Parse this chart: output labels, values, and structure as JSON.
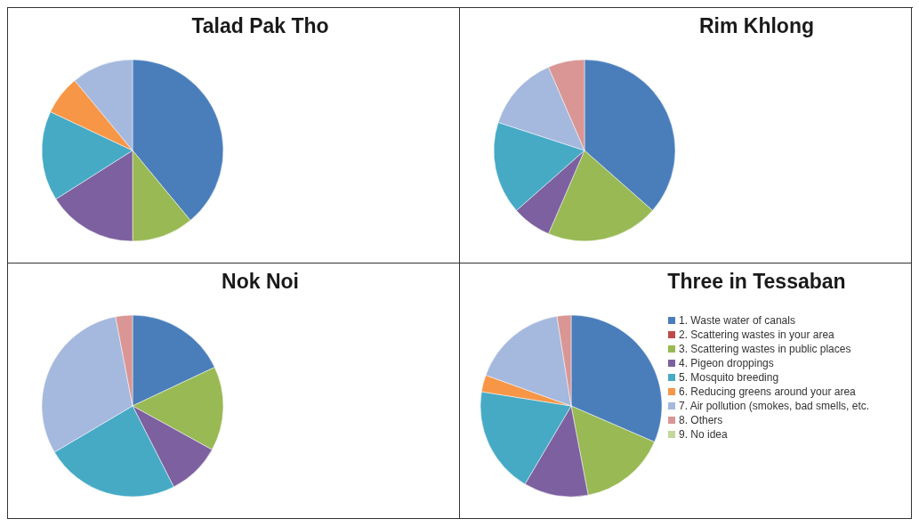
{
  "chart_data": [
    {
      "type": "pie",
      "title": "Talad Pak Tho",
      "categories": [
        null,
        null,
        null,
        null,
        null,
        null,
        null,
        null,
        null
      ],
      "values": [
        39,
        0,
        11,
        16,
        16,
        7,
        11,
        0,
        0
      ],
      "colors": [
        "#4a7ebb",
        "#be4b48",
        "#98b954",
        "#7d60a0",
        "#46aac5",
        "#f79646",
        "#a5b8de",
        "#d99694",
        "#c3d69b"
      ],
      "legend": false
    },
    {
      "type": "pie",
      "title": "Rim Khlong",
      "categories": [
        null,
        null,
        null,
        null,
        null,
        null,
        null,
        null,
        null
      ],
      "values": [
        36.5,
        0,
        20,
        7,
        16.5,
        0,
        13.5,
        6.5,
        0
      ],
      "colors": [
        "#4a7ebb",
        "#be4b48",
        "#98b954",
        "#7d60a0",
        "#46aac5",
        "#f79646",
        "#a5b8de",
        "#d99694",
        "#c3d69b"
      ],
      "legend": false
    },
    {
      "type": "pie",
      "title": "Nok Noi",
      "categories": [
        null,
        null,
        null,
        null,
        null,
        null,
        null,
        null,
        null
      ],
      "values": [
        18,
        0,
        15,
        9.5,
        24,
        0,
        30.5,
        3,
        0
      ],
      "colors": [
        "#4a7ebb",
        "#be4b48",
        "#98b954",
        "#7d60a0",
        "#46aac5",
        "#f79646",
        "#a5b8de",
        "#d99694",
        "#c3d69b"
      ],
      "legend": false
    },
    {
      "type": "pie",
      "title": "Three in Tessaban",
      "categories": [
        "1. Waste water of canals",
        "2. Scattering wastes in your area",
        "3. Scattering wastes in public places",
        "4. Pigeon droppings",
        "5. Mosquito breeding",
        "6. Reducing greens around your area",
        "7. Air pollution (smokes, bad smells, etc.",
        "8. Others",
        "9. No idea"
      ],
      "values": [
        31.5,
        0,
        15.5,
        11.5,
        19,
        3,
        17,
        2.5,
        0
      ],
      "colors": [
        "#4a7ebb",
        "#be4b48",
        "#98b954",
        "#7d60a0",
        "#46aac5",
        "#f79646",
        "#a5b8de",
        "#d99694",
        "#c3d69b"
      ],
      "legend": "right"
    }
  ]
}
